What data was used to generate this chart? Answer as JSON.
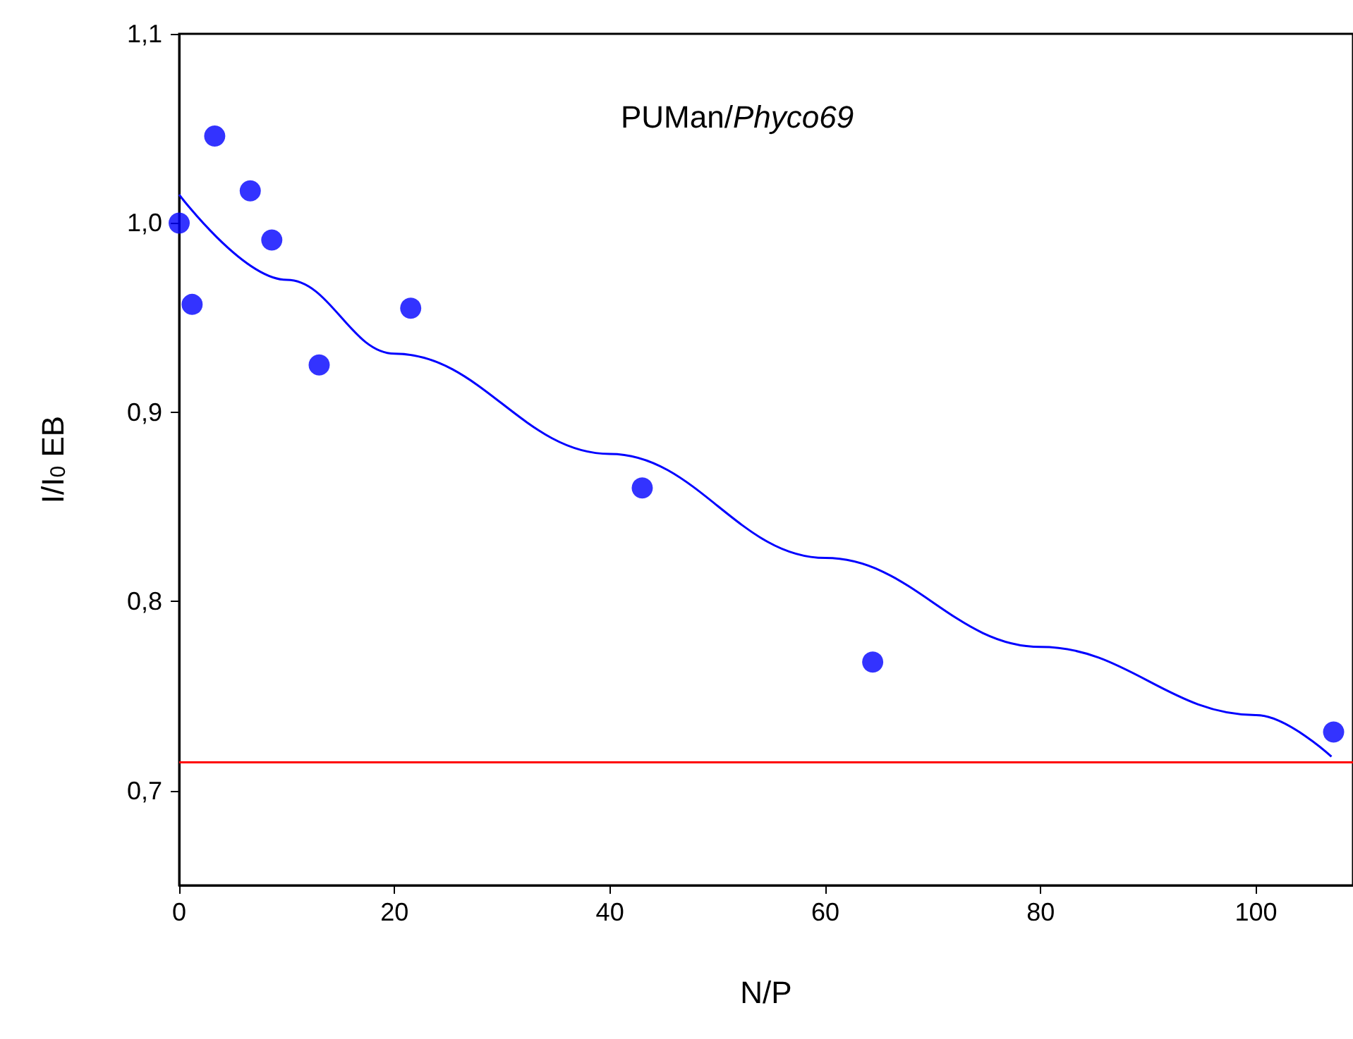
{
  "chart_data": {
    "type": "scatter",
    "xlabel": "N/P",
    "ylabel": "I/I$_{0}$ EB",
    "annotations": [
      "PUMan/Phyco69"
    ],
    "xlim": [
      0,
      109
    ],
    "xticks": [
      0,
      20,
      40,
      60,
      80,
      100
    ],
    "ylim": [
      0.65,
      1.1
    ],
    "yticks": [
      {
        "value": 0.7,
        "label": "0,7"
      },
      {
        "value": 0.8,
        "label": "0,8"
      },
      {
        "value": 0.9,
        "label": "0,9"
      },
      {
        "value": 1.0,
        "label": "1,0"
      },
      {
        "value": 1.1,
        "label": "1,1"
      }
    ],
    "grid": false,
    "marker": "circle",
    "series": [
      {
        "type": "scatter",
        "color": "#0000ff",
        "x": [
          0,
          1.2,
          3.3,
          6.6,
          8.6,
          13.0,
          21.5,
          43.0,
          64.4,
          107.2
        ],
        "values": [
          1.0,
          0.957,
          1.046,
          1.017,
          0.991,
          0.925,
          0.955,
          0.86,
          0.768,
          0.731
        ]
      },
      {
        "type": "line",
        "color": "#0000ff",
        "line_style": "solid",
        "marker": "none",
        "x": [
          0,
          10,
          20,
          40,
          60,
          80,
          100,
          107
        ],
        "values": [
          1.015,
          0.97,
          0.931,
          0.878,
          0.823,
          0.776,
          0.74,
          0.718
        ]
      }
    ],
    "ref_lines": [
      {
        "axis": "y",
        "value": 0.715,
        "color": "#ff0000"
      }
    ]
  }
}
